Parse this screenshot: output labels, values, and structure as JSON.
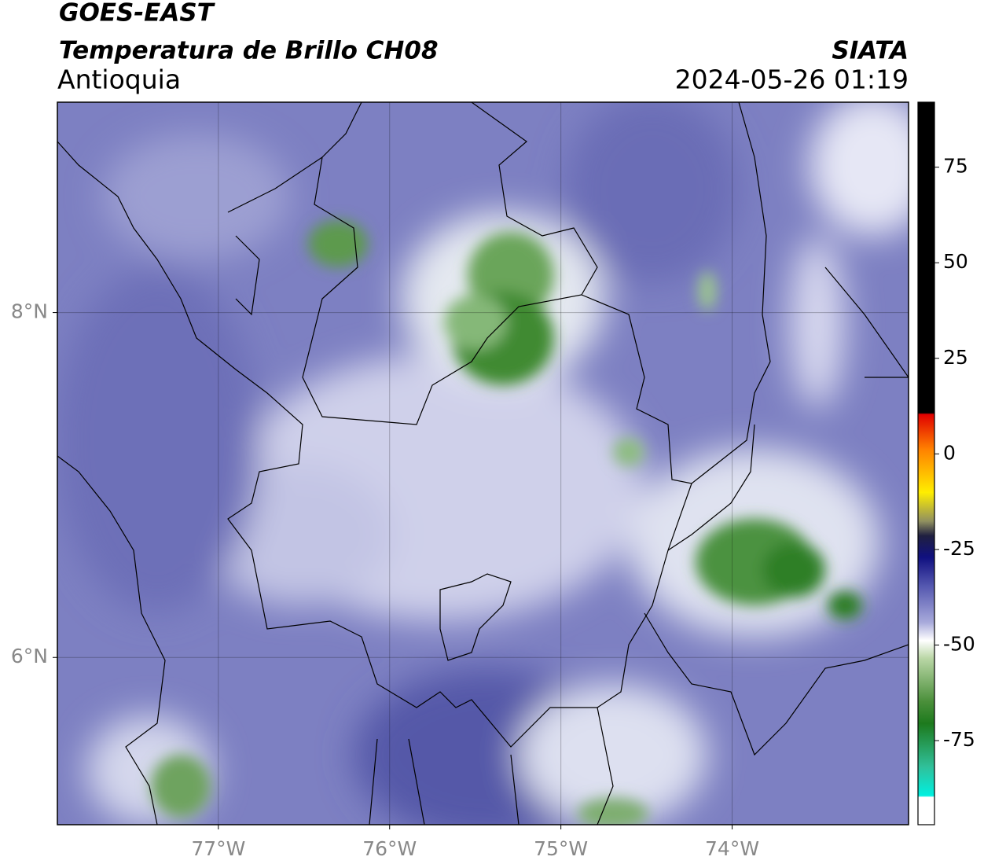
{
  "header": {
    "satellite": "GOES-EAST",
    "product": "Temperatura de Brillo CH08",
    "region": "Antioquia",
    "agency": "SIATA",
    "datetime": "2024-05-26 01:19"
  },
  "map": {
    "lonlim": [
      -77.94,
      -72.97
    ],
    "latlim": [
      5.03,
      9.22
    ],
    "lon_ticks": [
      {
        "value": -77,
        "label": "77°W"
      },
      {
        "value": -76,
        "label": "76°W"
      },
      {
        "value": -75,
        "label": "75°W"
      },
      {
        "value": -74,
        "label": "74°W"
      }
    ],
    "lat_ticks": [
      {
        "value": 8,
        "label": "8°N"
      },
      {
        "value": 6,
        "label": "6°N"
      }
    ]
  },
  "colorbar": {
    "lim": [
      -97,
      92
    ],
    "ticks": [
      75,
      50,
      25,
      0,
      -25,
      -50,
      -75
    ]
  }
}
